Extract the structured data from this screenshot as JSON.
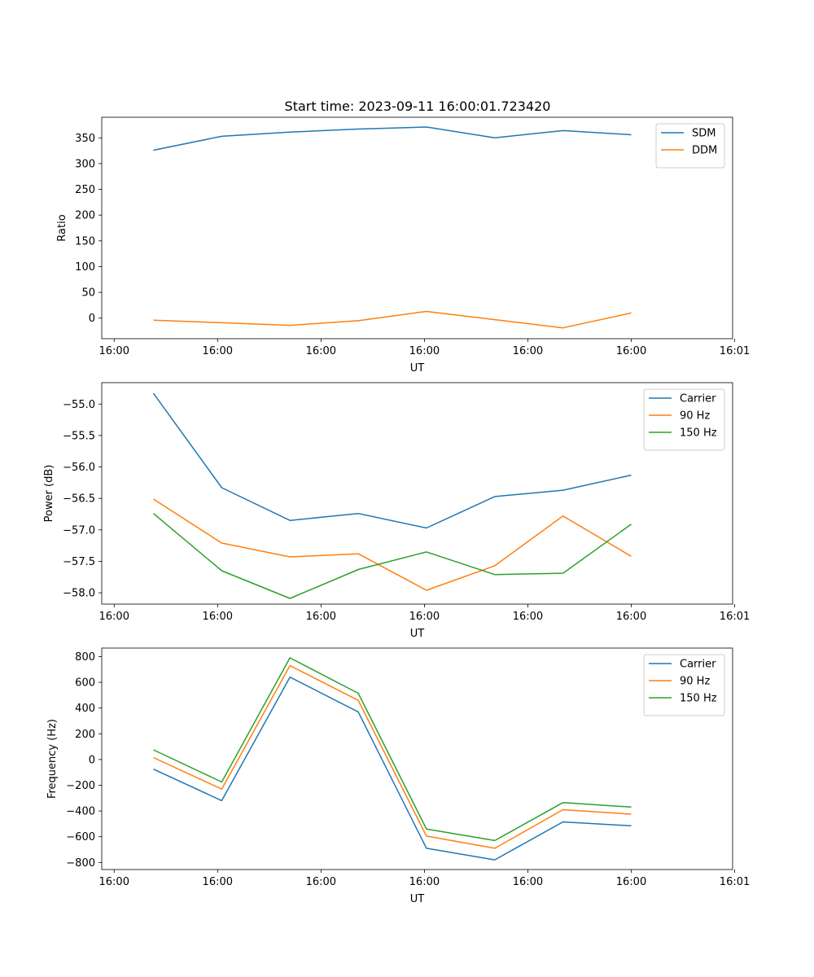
{
  "figure_title": "Start time: 2023-09-11 16:00:01.723420",
  "colors": {
    "blue": "#1f77b4",
    "orange": "#ff7f0e",
    "green": "#2ca02c"
  },
  "chart_data": [
    {
      "type": "line",
      "title": "Start time: 2023-09-11 16:00:01.723420",
      "xlabel": "UT",
      "ylabel": "Ratio",
      "x": [
        0.5,
        1.16,
        1.82,
        2.48,
        3.14,
        3.8,
        4.46,
        5.12
      ],
      "xlim": [
        0,
        6.1
      ],
      "xticks": [
        0.12,
        1.12,
        2.12,
        3.12,
        4.12,
        5.12,
        6.12
      ],
      "xtick_labels": [
        "16:00",
        "16:00",
        "16:00",
        "16:00",
        "16:00",
        "16:00",
        "16:01"
      ],
      "ylim": [
        -40,
        390
      ],
      "yticks": [
        0,
        50,
        100,
        150,
        200,
        250,
        300,
        350
      ],
      "ytick_labels": [
        "0",
        "50",
        "100",
        "150",
        "200",
        "250",
        "300",
        "350"
      ],
      "legend_position": "top-right",
      "series": [
        {
          "name": "SDM",
          "color": "#1f77b4",
          "values": [
            326,
            353,
            361,
            367,
            371,
            350,
            364,
            356
          ]
        },
        {
          "name": "DDM",
          "color": "#ff7f0e",
          "values": [
            -4,
            -9,
            -14,
            -5,
            13,
            -3,
            -19,
            10
          ]
        }
      ]
    },
    {
      "type": "line",
      "xlabel": "UT",
      "ylabel": "Power (dB)",
      "x": [
        0.5,
        1.16,
        1.82,
        2.48,
        3.14,
        3.8,
        4.46,
        5.12
      ],
      "xlim": [
        0,
        6.1
      ],
      "xticks": [
        0.12,
        1.12,
        2.12,
        3.12,
        4.12,
        5.12,
        6.12
      ],
      "xtick_labels": [
        "16:00",
        "16:00",
        "16:00",
        "16:00",
        "16:00",
        "16:00",
        "16:01"
      ],
      "ylim": [
        -58.18,
        -54.66
      ],
      "yticks": [
        -58.0,
        -57.5,
        -57.0,
        -56.5,
        -56.0,
        -55.5,
        -55.0
      ],
      "ytick_labels": [
        "−58.0",
        "−57.5",
        "−57.0",
        "−56.5",
        "−56.0",
        "−55.5",
        "−55.0"
      ],
      "legend_position": "top-right",
      "series": [
        {
          "name": "Carrier",
          "color": "#1f77b4",
          "values": [
            -54.83,
            -56.33,
            -56.85,
            -56.74,
            -56.97,
            -56.47,
            -56.37,
            -56.13
          ]
        },
        {
          "name": "90 Hz",
          "color": "#ff7f0e",
          "values": [
            -56.51,
            -57.21,
            -57.43,
            -57.38,
            -57.96,
            -57.57,
            -56.78,
            -57.42
          ]
        },
        {
          "name": "150 Hz",
          "color": "#2ca02c",
          "values": [
            -56.74,
            -57.65,
            -58.09,
            -57.63,
            -57.35,
            -57.71,
            -57.69,
            -56.91
          ]
        }
      ]
    },
    {
      "type": "line",
      "xlabel": "UT",
      "ylabel": "Frequency (Hz)",
      "x": [
        0.5,
        1.16,
        1.82,
        2.48,
        3.14,
        3.8,
        4.46,
        5.12
      ],
      "xlim": [
        0,
        6.1
      ],
      "xticks": [
        0.12,
        1.12,
        2.12,
        3.12,
        4.12,
        5.12,
        6.12
      ],
      "xtick_labels": [
        "16:00",
        "16:00",
        "16:00",
        "16:00",
        "16:00",
        "16:00",
        "16:01"
      ],
      "ylim": [
        -855,
        866
      ],
      "yticks": [
        -800,
        -600,
        -400,
        -200,
        0,
        200,
        400,
        600,
        800
      ],
      "ytick_labels": [
        "−800",
        "−600",
        "−400",
        "−200",
        "0",
        "200",
        "400",
        "600",
        "800"
      ],
      "legend_position": "top-right",
      "series": [
        {
          "name": "Carrier",
          "color": "#1f77b4",
          "values": [
            -75,
            -320,
            640,
            370,
            -690,
            -780,
            -485,
            -515
          ]
        },
        {
          "name": "90 Hz",
          "color": "#ff7f0e",
          "values": [
            15,
            -230,
            730,
            460,
            -595,
            -690,
            -390,
            -425
          ]
        },
        {
          "name": "150 Hz",
          "color": "#2ca02c",
          "values": [
            75,
            -175,
            790,
            515,
            -540,
            -630,
            -335,
            -370
          ]
        }
      ]
    }
  ]
}
